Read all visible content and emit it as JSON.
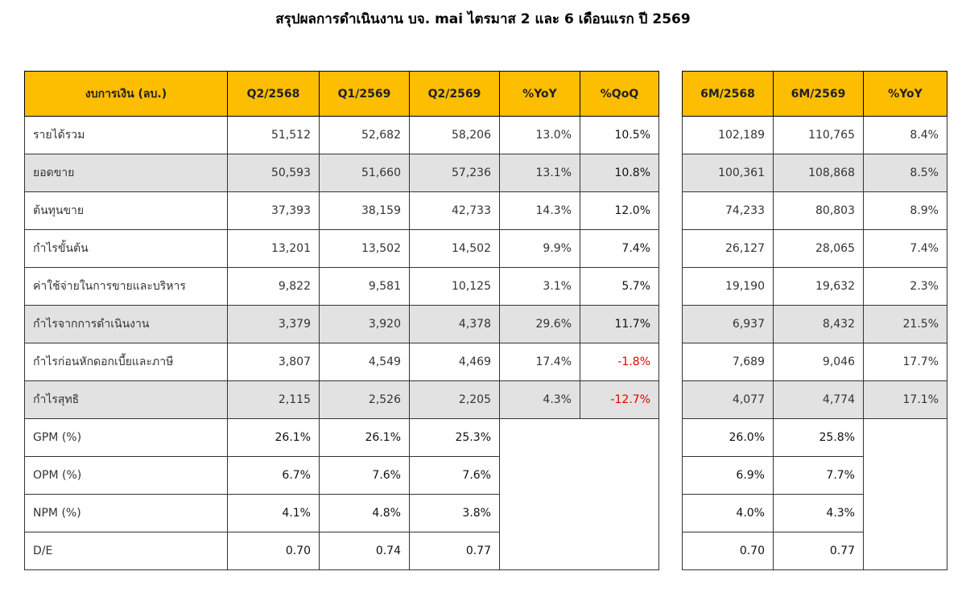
{
  "title": "สรุปผลการดำเนินงาน บจ. mai ไตรมาส 2 และ 6 เดือนแรก ปี 2569",
  "left_table": {
    "headers": [
      "งบการเงิน (ลบ.)",
      "Q2/2568",
      "Q1/2569",
      "Q2/2569",
      "%YoY",
      "%QoQ"
    ],
    "rows": [
      [
        "รายได้รวม",
        "51,512",
        "52,682",
        "58,206",
        "13.0%",
        "10.5%"
      ],
      [
        "ยอดขาย",
        "50,593",
        "51,660",
        "57,236",
        "13.1%",
        "10.8%"
      ],
      [
        "ต้นทุนขาย",
        "37,393",
        "38,159",
        "42,733",
        "14.3%",
        "12.0%"
      ],
      [
        "กำไรขั้นต้น",
        "13,201",
        "13,502",
        "14,502",
        "9.9%",
        "7.4%"
      ],
      [
        "ค่าใช้จ่ายในการขายและบริหาร",
        "9,822",
        "9,581",
        "10,125",
        "3.1%",
        "5.7%"
      ],
      [
        "กำไรจากการดำเนินงาน",
        "3,379",
        "3,920",
        "4,378",
        "29.6%",
        "11.7%"
      ],
      [
        "กำไรก่อนหักดอกเบี้ยและภาษี",
        "3,807",
        "4,549",
        "4,469",
        "17.4%",
        "-1.8%"
      ],
      [
        "กำไรสุทธิ",
        "2,115",
        "2,526",
        "2,205",
        "4.3%",
        "-12.7%"
      ],
      [
        "GPM (%)",
        "26.1%",
        "26.1%",
        "25.3%"
      ],
      [
        "OPM (%)",
        "6.7%",
        "7.6%",
        "7.6%"
      ],
      [
        "NPM (%)",
        "4.1%",
        "4.8%",
        "3.8%"
      ],
      [
        "D/E",
        "0.70",
        "0.74",
        "0.77"
      ]
    ]
  },
  "right_table": {
    "headers": [
      "6M/2568",
      "6M/2569",
      "%YoY"
    ],
    "rows": [
      [
        "102,189",
        "110,765",
        "8.4%"
      ],
      [
        "100,361",
        "108,868",
        "8.5%"
      ],
      [
        "74,233",
        "80,803",
        "8.9%"
      ],
      [
        "26,127",
        "28,065",
        "7.4%"
      ],
      [
        "19,190",
        "19,632",
        "2.3%"
      ],
      [
        "6,937",
        "8,432",
        "21.5%"
      ],
      [
        "7,689",
        "9,046",
        "17.7%"
      ],
      [
        "4,077",
        "4,774",
        "17.1%"
      ],
      [
        "26.0%",
        "25.8%"
      ],
      [
        "6.9%",
        "7.7%"
      ],
      [
        "4.0%",
        "4.3%"
      ],
      [
        "0.70",
        "0.77"
      ]
    ]
  }
}
